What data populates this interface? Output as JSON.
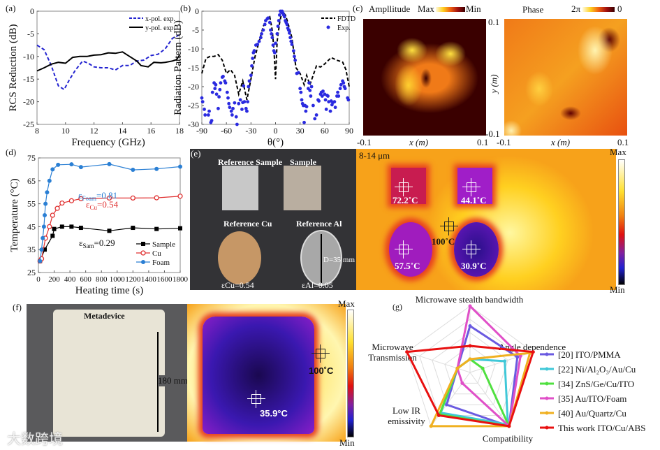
{
  "panel_labels": {
    "a": "(a)",
    "b": "(b)",
    "c": "(c)",
    "d": "(d)",
    "e": "(e)",
    "f": "(f)",
    "g": "(g)"
  },
  "chart_data": [
    {
      "id": "a",
      "type": "line",
      "title": "",
      "xlabel": "Frequency (GHz)",
      "ylabel": "RCS Reduction (dB)",
      "xlim": [
        8,
        18
      ],
      "ylim": [
        -25,
        0
      ],
      "xticks": [
        8,
        10,
        12,
        14,
        16,
        18
      ],
      "yticks": [
        0,
        -5,
        -10,
        -15,
        -20,
        -25
      ],
      "legend": "top-right",
      "series": [
        {
          "name": "x-pol. exp.",
          "color": "#2323d0",
          "dash": true,
          "x": [
            8,
            8.5,
            9,
            9.5,
            9.9,
            10.3,
            10.7,
            11.2,
            11.6,
            12,
            12.5,
            13,
            13.5,
            14,
            14.5,
            15,
            15.5,
            16,
            16.5,
            17,
            17.5,
            18
          ],
          "y": [
            -7.5,
            -8.5,
            -12,
            -16.5,
            -17.3,
            -15,
            -13,
            -11,
            -11.5,
            -12.3,
            -12.5,
            -12.5,
            -13,
            -12,
            -12,
            -11,
            -10.8,
            -9.8,
            -9.5,
            -8.3,
            -6,
            -5.2
          ]
        },
        {
          "name": "y-pol. exp.",
          "color": "#000000",
          "dash": false,
          "x": [
            8,
            8.5,
            9,
            9.5,
            10,
            10.5,
            11,
            11.5,
            12,
            12.5,
            13,
            13.5,
            14,
            14.5,
            15,
            15.3,
            15.8,
            16.2,
            16.7,
            17,
            17.5,
            17.8,
            18
          ],
          "y": [
            -13.2,
            -12.5,
            -11.7,
            -11.3,
            -11.5,
            -10.2,
            -10,
            -10,
            -9.7,
            -9.6,
            -9.2,
            -9.3,
            -9,
            -10,
            -11,
            -12,
            -12.3,
            -11.3,
            -11.4,
            -11.3,
            -11,
            -10.7,
            -9.7
          ]
        }
      ]
    },
    {
      "id": "b",
      "type": "line+scatter",
      "xlabel": "θ(°)",
      "ylabel": "Radiation  Pattern (dB)",
      "xlim": [
        -90,
        90
      ],
      "ylim": [
        -30,
        0
      ],
      "xticks": [
        -90,
        -60,
        -30,
        0,
        30,
        60,
        90
      ],
      "yticks": [
        0,
        -5,
        -10,
        -15,
        -20,
        -25,
        -30
      ],
      "legend": "top-right",
      "series": [
        {
          "name": "FDTD",
          "color": "#000000",
          "dash": true,
          "x": [
            -90,
            -85,
            -80,
            -75,
            -70,
            -65,
            -60,
            -55,
            -50,
            -45,
            -40,
            -35,
            -30,
            -25,
            -20,
            -15,
            -10,
            -7,
            -4,
            -2,
            0,
            2,
            5,
            8,
            12,
            15,
            20,
            25,
            30,
            35,
            38,
            42,
            50,
            55,
            60,
            68,
            75,
            82,
            86,
            90
          ],
          "y": [
            -16.5,
            -12.5,
            -12,
            -12,
            -11.5,
            -13,
            -16.5,
            -15.5,
            -17,
            -22,
            -18.5,
            -23.5,
            -18,
            -12,
            -8,
            -4,
            -2,
            -1.5,
            -5,
            -10,
            -18,
            -8,
            -3,
            0,
            -1,
            -3,
            -7,
            -15,
            -16.5,
            -19.5,
            -17,
            -19.5,
            -14.5,
            -14.8,
            -14,
            -12.3,
            -13,
            -13.5,
            -15.5,
            -20
          ]
        },
        {
          "name": "Exp.",
          "color": "#2a2ae0",
          "marker": "dot",
          "x": [
            -90,
            -89,
            -87,
            -86,
            -82,
            -81,
            -79,
            -78,
            -77,
            -75,
            -74,
            -73,
            -72,
            -70,
            -69,
            -68,
            -67,
            -65,
            -64,
            -62,
            -61,
            -59,
            -58,
            -57,
            -56,
            -54,
            -53,
            -52,
            -50,
            -48,
            -47,
            -45,
            -43,
            -41,
            -40,
            -39,
            -38,
            -36,
            -35,
            -34,
            -33,
            -32,
            -30,
            -29,
            -28,
            -27,
            -26,
            -24,
            -22,
            -20,
            -18,
            -17,
            -15,
            -13,
            -12,
            -10,
            -9,
            -7,
            -6,
            -5,
            -4,
            -3,
            -2,
            -1,
            0,
            2,
            3,
            4,
            5,
            6,
            7,
            8,
            9,
            10,
            11,
            12,
            13,
            14,
            15,
            16,
            17,
            18,
            19,
            20,
            22,
            23,
            24,
            26,
            28,
            30,
            31,
            32,
            33,
            34,
            35,
            36,
            37,
            38,
            40,
            41,
            42,
            43,
            44,
            46,
            48,
            50,
            52,
            53,
            55,
            56,
            57,
            58,
            60,
            61,
            62,
            63,
            64,
            65,
            67,
            68,
            69,
            70,
            72,
            73,
            75,
            76,
            77,
            79,
            80,
            82,
            83,
            84,
            85,
            88,
            89
          ],
          "y": [
            -23,
            -24,
            -26,
            -27.5,
            -27.5,
            -26.5,
            -29.5,
            -29,
            -21.5,
            -19,
            -20.5,
            -19.5,
            -22,
            -25.8,
            -22.7,
            -20.8,
            -19,
            -17.5,
            -17.3,
            -18.5,
            -19,
            -21.5,
            -23,
            -24.5,
            -25.5,
            -26.5,
            -27.5,
            -25.8,
            -24.3,
            -28,
            -30,
            -24.5,
            -23.5,
            -26,
            -24.2,
            -19.8,
            -24,
            -25.8,
            -26.5,
            -24,
            -20,
            -18.5,
            -17,
            -14.5,
            -12.5,
            -11,
            -10.5,
            -9,
            -8.8,
            -8,
            -7,
            -6,
            -5,
            -3.5,
            -2.5,
            -2,
            -1.8,
            -3,
            -5,
            -6,
            -7,
            -9,
            -10.5,
            -11,
            -8.5,
            -6,
            -4,
            -2.5,
            -1,
            0,
            -0.2,
            0,
            -0.5,
            -1,
            -1.5,
            -2.5,
            -3,
            -3.5,
            -4.5,
            -5,
            -5.8,
            -7,
            -8,
            -8.8,
            -10.5,
            -12,
            -13,
            -16.5,
            -16.3,
            -20.5,
            -21.5,
            -23.5,
            -24.5,
            -25,
            -29.5,
            -25,
            -26.5,
            -25.3,
            -20.5,
            -19,
            -21,
            -22.5,
            -20,
            -25,
            -28.5,
            -27.5,
            -23.5,
            -23.8,
            -22,
            -21.5,
            -22.5,
            -21.2,
            -22,
            -23.5,
            -26,
            -22.3,
            -22.5,
            -24,
            -26.5,
            -23.8,
            -24.8,
            -24.2,
            -24,
            -25.5,
            -22.5,
            -21.5,
            -22.5,
            -20.5,
            -19.5,
            -18.5,
            -19,
            -20,
            -20.5,
            -23,
            -23.5
          ]
        }
      ]
    },
    {
      "id": "d",
      "type": "line",
      "xlabel": "Heating time (s)",
      "ylabel": "Temperature (°C)",
      "xlim": [
        0,
        1800
      ],
      "ylim": [
        25,
        75
      ],
      "xticks": [
        0,
        200,
        400,
        600,
        800,
        1000,
        1200,
        1400,
        1600,
        1800
      ],
      "yticks": [
        25,
        35,
        45,
        55,
        65,
        75
      ],
      "legend": "bottom-right",
      "series": [
        {
          "name": "Sample",
          "color": "#000000",
          "marker": "square",
          "x": [
            20,
            80,
            180,
            200,
            300,
            420,
            540,
            900,
            1200,
            1500,
            1800
          ],
          "y": [
            30,
            35,
            41,
            44,
            45,
            45,
            44.5,
            43.2,
            44.5,
            44,
            44.3
          ]
        },
        {
          "name": "Cu",
          "color": "#e03030",
          "marker": "open-circle",
          "x": [
            20,
            40,
            90,
            140,
            180,
            240,
            300,
            420,
            540,
            900,
            1200,
            1500,
            1800
          ],
          "y": [
            30,
            31,
            40,
            45,
            50,
            53,
            55.3,
            56.3,
            57.2,
            57.5,
            57.5,
            57.6,
            58.3
          ]
        },
        {
          "name": "Foam",
          "color": "#2a7fd4",
          "marker": "circle",
          "x": [
            20,
            40,
            55,
            70,
            80,
            90,
            110,
            140,
            180,
            250,
            420,
            540,
            900,
            1200,
            1500,
            1800
          ],
          "y": [
            30,
            35,
            40,
            45,
            50,
            55,
            60,
            65,
            70,
            72,
            72.2,
            71,
            72.3,
            69.8,
            70.2,
            71.2
          ]
        }
      ],
      "annotations": [
        {
          "symbol": "ε",
          "sub": "Foam",
          "value": "=0.81",
          "color": "#2a7fd4"
        },
        {
          "symbol": "ε",
          "sub": "Cu",
          "value": "=0.54",
          "color": "#e03030"
        },
        {
          "symbol": "ε",
          "sub": "Sam",
          "value": "=0.29",
          "color": "#111111"
        }
      ]
    },
    {
      "id": "g",
      "type": "radar",
      "rings": 5,
      "range": [
        0,
        1
      ],
      "axes": [
        "Microwave stealth  bandwidth",
        "Angle dependence",
        "Compatibility",
        "Low IR emissivity",
        "Microwave Transmission"
      ],
      "axis_label_lines": {
        "3": [
          "Low IR",
          "emissivity"
        ],
        "4": [
          "Microwave",
          "Transmission"
        ]
      },
      "series": [
        {
          "name": "[20] ITO/PMMA",
          "color": "#6a5ae0",
          "values": [
            0.7,
            0.75,
            1.0,
            0.6,
            0.2
          ]
        },
        {
          "name": "[22]  Ni/Al₂O₃/Au/Cu",
          "color": "#40c8d8",
          "values": [
            0.2,
            0.55,
            0.97,
            0.75,
            0.2
          ]
        },
        {
          "name": "[34] ZnS/Ge/Cu/ITO",
          "color": "#50e040",
          "values": [
            0.2,
            0.2,
            1.0,
            0.78,
            0.2
          ]
        },
        {
          "name": "[35] Au/ITO/Foam",
          "color": "#e050c8",
          "values": [
            1.0,
            0.8,
            1.0,
            0.2,
            0.2
          ]
        },
        {
          "name": "[40] Au/Quartz/Cu",
          "color": "#f0b020",
          "values": [
            0.2,
            0.95,
            1.0,
            1.0,
            0.2
          ]
        },
        {
          "name": "This work  ITO/Cu/ABS",
          "color": "#e81010",
          "values": [
            0.4,
            1.0,
            1.0,
            0.8,
            1.0
          ]
        }
      ]
    }
  ],
  "c": {
    "amplitude_title": "Ampllitude",
    "amp_max": "Max",
    "amp_min": "Min",
    "phase_title": "Phase",
    "phase_max": "2π",
    "phase_min": "0",
    "xlabel": "x (m)",
    "ylabel": "y (m)",
    "x_min": "-0.1",
    "x_max": "0.1",
    "y_max": "0.1",
    "y_min": "-0.1"
  },
  "e": {
    "labels": {
      "ref_sample": "Reference Sample",
      "sample": "Sample",
      "ref_cu": "Reference Cu",
      "ref_al": "Reference Al"
    },
    "diameter": "D=35 mm",
    "eps_cu": "εCu=0.54",
    "eps_al": "εAl=0.05",
    "band": "8-14 μm",
    "cbar_max": "Max",
    "cbar_min": "Min",
    "temps": {
      "ref_sample": "72.2˚C",
      "sample": "44.1˚C",
      "ref_cu": "57.5˚C",
      "ref_al": "30.9˚C",
      "heater": "100˚C"
    }
  },
  "f": {
    "device_label": "Metadevice",
    "height": "180 mm",
    "temp_device": "35.9°C",
    "temp_heater": "100˚C",
    "cbar_max": "Max",
    "cbar_min": "Min"
  },
  "watermark": "大数跨境"
}
